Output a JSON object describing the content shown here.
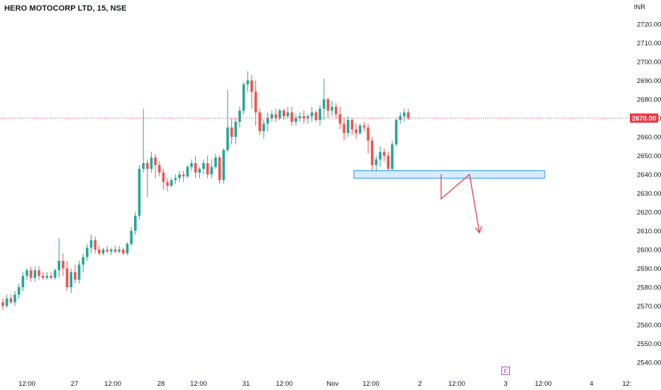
{
  "header": {
    "title": "HERO MOTOCORP LTD, 15, NSE",
    "currency": "INR"
  },
  "last_price_label": "2670.00",
  "earnings_badge": "E",
  "colors": {
    "up": "#26a69a",
    "down": "#ef5350",
    "last_price": "#f23645",
    "zone_fill": "#cfe8fb",
    "zone_stroke": "#2196f3",
    "arrow": "#ef3b4a"
  },
  "chart_data": {
    "type": "candlestick",
    "title": "HERO MOTOCORP LTD, 15, NSE",
    "ylabel": "INR",
    "ylim": [
      2535,
      2725
    ],
    "y_ticks": [
      "2720.00",
      "2710.00",
      "2700.00",
      "2690.00",
      "2680.00",
      "2670.00",
      "2660.00",
      "2650.00",
      "2640.00",
      "2630.00",
      "2620.00",
      "2610.00",
      "2600.00",
      "2590.00",
      "2580.00",
      "2570.00",
      "2560.00",
      "2550.00",
      "2540.00"
    ],
    "x_ticks": [
      "12:00",
      "27",
      "12:00",
      "28",
      "12:00",
      "31",
      "12:00",
      "Nov",
      "12:00",
      "2",
      "12:00",
      "3",
      "12:00",
      "4",
      "12:"
    ],
    "last_price": 2670,
    "series": [
      {
        "ohlc": [
          [
            2572,
            2574,
            2568,
            2570
          ],
          [
            2570,
            2576,
            2569,
            2574
          ],
          [
            2574,
            2576,
            2571,
            2572
          ],
          [
            2572,
            2578,
            2570,
            2576
          ],
          [
            2576,
            2582,
            2574,
            2580
          ],
          [
            2580,
            2588,
            2578,
            2586
          ],
          [
            2586,
            2590,
            2584,
            2589
          ],
          [
            2589,
            2591,
            2583,
            2585
          ],
          [
            2585,
            2591,
            2583,
            2589
          ],
          [
            2589,
            2591,
            2584,
            2586
          ],
          [
            2586,
            2588,
            2584,
            2585
          ],
          [
            2585,
            2588,
            2584,
            2586
          ],
          [
            2586,
            2588,
            2584,
            2585
          ],
          [
            2585,
            2590,
            2584,
            2589
          ],
          [
            2589,
            2606,
            2585,
            2594
          ],
          [
            2594,
            2598,
            2586,
            2590
          ],
          [
            2590,
            2594,
            2578,
            2580
          ],
          [
            2580,
            2590,
            2577,
            2588
          ],
          [
            2588,
            2592,
            2582,
            2584
          ],
          [
            2584,
            2594,
            2582,
            2592
          ],
          [
            2592,
            2598,
            2588,
            2596
          ],
          [
            2596,
            2603,
            2594,
            2601
          ],
          [
            2601,
            2608,
            2598,
            2605
          ],
          [
            2605,
            2607,
            2598,
            2600
          ],
          [
            2600,
            2602,
            2597,
            2598
          ],
          [
            2598,
            2601,
            2597,
            2600
          ],
          [
            2600,
            2602,
            2598,
            2599
          ],
          [
            2599,
            2601,
            2597,
            2600
          ],
          [
            2600,
            2602,
            2598,
            2599
          ],
          [
            2599,
            2602,
            2598,
            2600
          ],
          [
            2600,
            2601,
            2597,
            2598
          ],
          [
            2598,
            2604,
            2597,
            2603
          ],
          [
            2603,
            2612,
            2602,
            2610
          ],
          [
            2610,
            2620,
            2608,
            2618
          ],
          [
            2618,
            2645,
            2616,
            2643
          ],
          [
            2643,
            2675,
            2641,
            2646
          ],
          [
            2646,
            2648,
            2628,
            2643
          ],
          [
            2643,
            2652,
            2641,
            2649
          ],
          [
            2649,
            2651,
            2638,
            2645
          ],
          [
            2645,
            2647,
            2639,
            2641
          ],
          [
            2641,
            2643,
            2632,
            2636
          ],
          [
            2636,
            2638,
            2631,
            2634
          ],
          [
            2634,
            2638,
            2633,
            2637
          ],
          [
            2637,
            2640,
            2635,
            2638
          ],
          [
            2638,
            2642,
            2636,
            2640
          ],
          [
            2640,
            2642,
            2636,
            2639
          ],
          [
            2639,
            2645,
            2638,
            2644
          ],
          [
            2644,
            2648,
            2642,
            2646
          ],
          [
            2646,
            2650,
            2638,
            2641
          ],
          [
            2641,
            2644,
            2638,
            2643
          ],
          [
            2643,
            2648,
            2640,
            2646
          ],
          [
            2646,
            2650,
            2638,
            2640
          ],
          [
            2640,
            2648,
            2638,
            2644
          ],
          [
            2644,
            2651,
            2643,
            2649
          ],
          [
            2649,
            2650,
            2635,
            2637
          ],
          [
            2637,
            2654,
            2635,
            2653
          ],
          [
            2653,
            2685,
            2652,
            2665
          ],
          [
            2665,
            2670,
            2656,
            2660
          ],
          [
            2660,
            2670,
            2656,
            2668
          ],
          [
            2668,
            2676,
            2665,
            2674
          ],
          [
            2674,
            2689,
            2672,
            2688
          ],
          [
            2688,
            2695,
            2684,
            2690
          ],
          [
            2690,
            2693,
            2675,
            2684
          ],
          [
            2684,
            2690,
            2666,
            2673
          ],
          [
            2673,
            2675,
            2661,
            2663
          ],
          [
            2663,
            2669,
            2659,
            2667
          ],
          [
            2667,
            2673,
            2663,
            2670
          ],
          [
            2670,
            2674,
            2668,
            2672
          ],
          [
            2672,
            2675,
            2668,
            2670
          ],
          [
            2670,
            2675,
            2669,
            2674
          ],
          [
            2674,
            2675,
            2669,
            2671
          ],
          [
            2671,
            2676,
            2670,
            2673
          ],
          [
            2673,
            2676,
            2666,
            2668
          ],
          [
            2668,
            2672,
            2666,
            2670
          ],
          [
            2670,
            2673,
            2668,
            2671
          ],
          [
            2671,
            2674,
            2667,
            2670
          ],
          [
            2670,
            2672,
            2667,
            2671
          ],
          [
            2671,
            2676,
            2668,
            2673
          ],
          [
            2673,
            2674,
            2668,
            2669
          ],
          [
            2669,
            2677,
            2666,
            2675
          ],
          [
            2675,
            2691,
            2669,
            2680
          ],
          [
            2680,
            2681,
            2670,
            2674
          ],
          [
            2674,
            2679,
            2671,
            2676
          ],
          [
            2676,
            2678,
            2670,
            2672
          ],
          [
            2672,
            2676,
            2664,
            2667
          ],
          [
            2667,
            2670,
            2658,
            2662
          ],
          [
            2662,
            2671,
            2660,
            2669
          ],
          [
            2669,
            2670,
            2661,
            2664
          ],
          [
            2664,
            2667,
            2659,
            2662
          ],
          [
            2662,
            2667,
            2661,
            2666
          ],
          [
            2666,
            2668,
            2663,
            2665
          ],
          [
            2665,
            2667,
            2651,
            2658
          ],
          [
            2658,
            2660,
            2640,
            2645
          ],
          [
            2645,
            2650,
            2639,
            2648
          ],
          [
            2648,
            2655,
            2644,
            2652
          ],
          [
            2652,
            2654,
            2647,
            2650
          ],
          [
            2650,
            2652,
            2641,
            2643
          ],
          [
            2643,
            2658,
            2642,
            2656
          ],
          [
            2656,
            2670,
            2655,
            2669
          ],
          [
            2669,
            2673,
            2667,
            2671
          ],
          [
            2671,
            2675,
            2668,
            2673
          ],
          [
            2673,
            2675,
            2669,
            2670
          ]
        ]
      }
    ],
    "annotations": {
      "support_zone": {
        "y_top": 2642,
        "y_bottom": 2638
      },
      "projection": [
        [
          2640,
          0
        ],
        [
          2627,
          1
        ],
        [
          2640,
          2
        ],
        [
          2609,
          3
        ]
      ]
    }
  }
}
